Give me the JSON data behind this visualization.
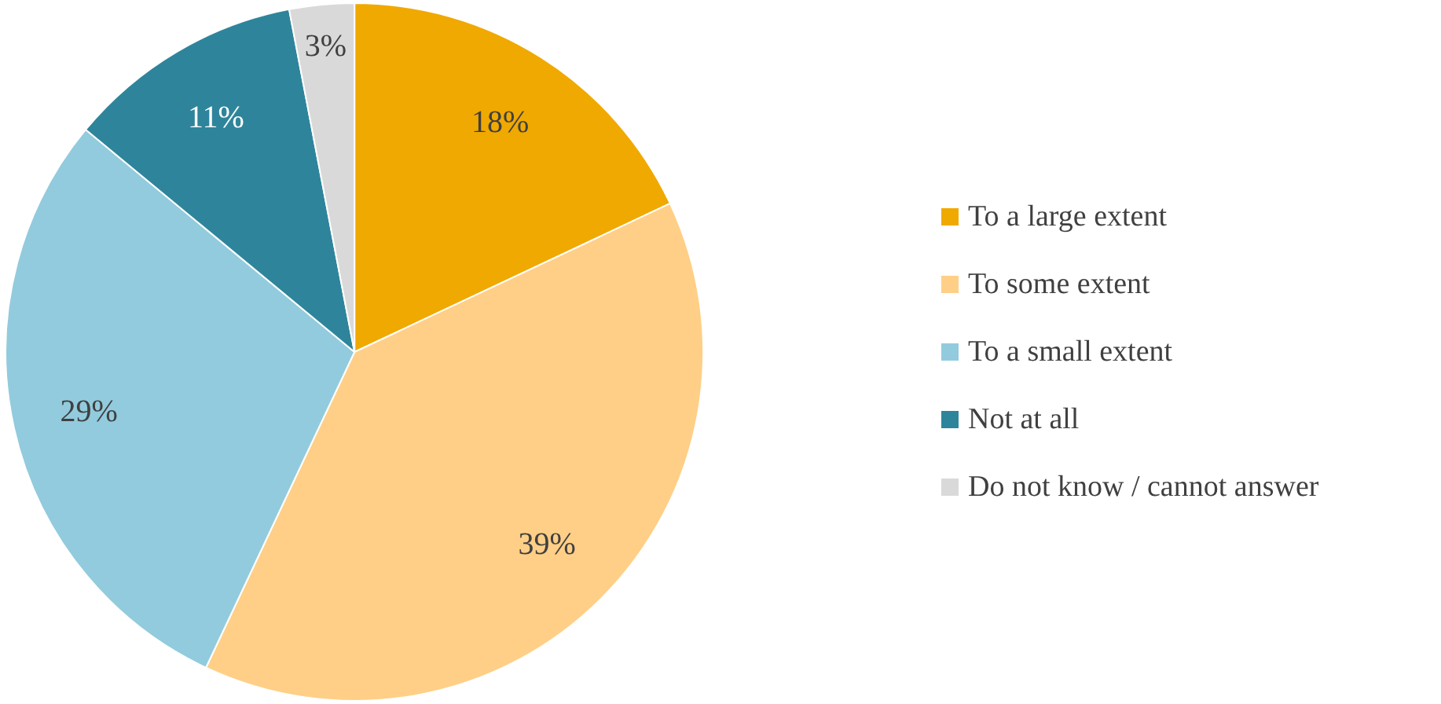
{
  "chart_data": {
    "type": "pie",
    "categories": [
      "To a large extent",
      "To some extent",
      "To a small extent",
      "Not at all",
      "Do not know / cannot answer"
    ],
    "values": [
      18,
      39,
      29,
      11,
      3
    ],
    "colors": [
      "#f0a900",
      "#ffcf87",
      "#92cbdd",
      "#2e859b",
      "#d9d9d9"
    ],
    "value_labels": [
      "18%",
      "39%",
      "29%",
      "11%",
      "3%"
    ],
    "legend": "right"
  }
}
